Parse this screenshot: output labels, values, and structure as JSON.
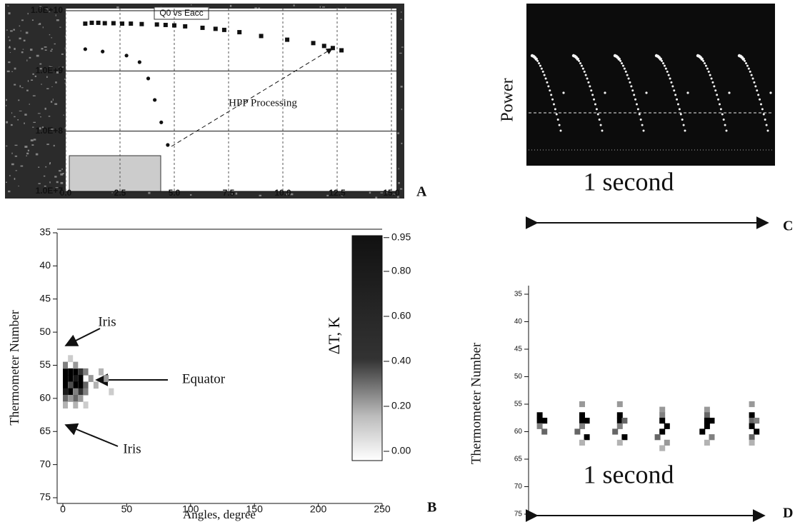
{
  "chart_data": [
    {
      "type": "scatter",
      "panel": "A",
      "title": "Q0 vs Eacc",
      "annotation": "HPP Processing",
      "xlim": [
        0,
        15
      ],
      "xticks": [
        {
          "value": 0,
          "label": "0.0"
        },
        2.5,
        {
          "value": 5,
          "label": "5.0"
        },
        7.5,
        {
          "value": 10,
          "label": "10.0"
        },
        12.5,
        {
          "value": 15,
          "label": "15.0"
        }
      ],
      "ylim": [
        10000000,
        10000000000
      ],
      "log_y": true,
      "yticks": [
        {
          "value": 10000000,
          "label": "1.0E+7"
        },
        {
          "value": 100000000,
          "label": "1.0E+8"
        },
        {
          "value": 1000000000,
          "label": "1.0E+9"
        },
        {
          "value": 10000000000,
          "label": "1.0E+10"
        }
      ],
      "grid": true,
      "series": [
        {
          "marker": "square",
          "color": "#111111",
          "x": [
            0.9,
            1.2,
            1.5,
            1.8,
            2.2,
            2.6,
            3.0,
            3.5,
            4.2,
            4.6,
            5.0,
            5.5,
            6.3,
            6.9,
            7.3,
            8.0,
            9.0,
            10.2,
            11.4,
            11.9,
            12.3,
            12.7
          ],
          "values": [
            6100000000,
            6300000000,
            6300000000,
            6200000000,
            6200000000,
            6100000000,
            6100000000,
            6000000000,
            5900000000,
            5800000000,
            5700000000,
            5500000000,
            5200000000,
            5000000000,
            4800000000,
            4400000000,
            3800000000,
            3300000000,
            2900000000,
            2600000000,
            2400000000,
            2200000000
          ]
        },
        {
          "marker": "circle",
          "color": "#111111",
          "x": [
            0.9,
            1.7,
            2.8,
            3.4,
            3.8,
            4.1,
            4.4,
            4.7
          ],
          "values": [
            2300000000,
            2100000000,
            1800000000,
            1400000000,
            750000000,
            330000000,
            140000000,
            59000000
          ]
        }
      ]
    },
    {
      "type": "heatmap",
      "panel": "B",
      "xlabel": "Angles, degree",
      "ylabel": "Thermometer Number",
      "colorbar_label": "ΔT, K",
      "annotations": [
        "Iris",
        "Equator",
        "Iris"
      ],
      "xlim": [
        0,
        250
      ],
      "xticks": [
        0,
        50,
        100,
        150,
        200,
        250
      ],
      "ylim": [
        35,
        75
      ],
      "yticks": [
        35,
        40,
        45,
        50,
        55,
        60,
        65,
        70,
        75
      ],
      "clim": [
        0,
        1
      ],
      "cticks": [
        0.95,
        {
          "value": 0.8,
          "label": "0.80"
        },
        {
          "value": 0.6,
          "label": "0.60"
        },
        {
          "value": 0.4,
          "label": "0.40"
        },
        {
          "value": 0.2,
          "label": "0.20"
        },
        {
          "value": 0,
          "label": "0.00"
        }
      ],
      "cells": [
        [
          0,
          56,
          1
        ],
        [
          4,
          56,
          1
        ],
        [
          8,
          56,
          1
        ],
        [
          12,
          56,
          0.8
        ],
        [
          0,
          57,
          1
        ],
        [
          4,
          57,
          1
        ],
        [
          8,
          57,
          0.9
        ],
        [
          12,
          57,
          1
        ],
        [
          0,
          58,
          1
        ],
        [
          4,
          58,
          0.7
        ],
        [
          8,
          58,
          1
        ],
        [
          12,
          58,
          1
        ],
        [
          16,
          58,
          0.6
        ],
        [
          0,
          59,
          0.9
        ],
        [
          4,
          59,
          1
        ],
        [
          8,
          59,
          0.5
        ],
        [
          12,
          59,
          0.8
        ],
        [
          16,
          59,
          0.5
        ],
        [
          0,
          60,
          0.6
        ],
        [
          4,
          60,
          0.4
        ],
        [
          8,
          60,
          0.6
        ],
        [
          12,
          60,
          0.4
        ],
        [
          0,
          55,
          0.5
        ],
        [
          8,
          55,
          0.4
        ],
        [
          16,
          56,
          0.5
        ],
        [
          20,
          57,
          0.4
        ],
        [
          24,
          58,
          0.3
        ],
        [
          28,
          56,
          0.3
        ],
        [
          32,
          57,
          0.4
        ],
        [
          36,
          59,
          0.2
        ],
        [
          0,
          61,
          0.3
        ],
        [
          8,
          61,
          0.3
        ],
        [
          16,
          61,
          0.2
        ],
        [
          4,
          54,
          0.2
        ]
      ]
    },
    {
      "type": "image",
      "panel": "C",
      "ylabel": "Power",
      "annotation": "1 second"
    },
    {
      "type": "heatmap",
      "panel": "D",
      "ylabel": "Thermometer Number",
      "annotations": [
        "1 second"
      ],
      "xlim": [
        0,
        1
      ],
      "ylim": [
        35,
        75
      ],
      "yticks": [
        35,
        40,
        45,
        50,
        55,
        60,
        65,
        70,
        75
      ],
      "clim": [
        0,
        1
      ],
      "cells": [
        [
          0.02,
          57,
          1
        ],
        [
          0.02,
          58,
          1
        ],
        [
          0.04,
          58,
          1
        ],
        [
          0.02,
          59,
          0.5
        ],
        [
          0.04,
          60,
          0.6
        ],
        [
          0.2,
          55,
          0.4
        ],
        [
          0.2,
          57,
          1
        ],
        [
          0.2,
          58,
          1
        ],
        [
          0.22,
          58,
          1
        ],
        [
          0.2,
          59,
          0.5
        ],
        [
          0.18,
          60,
          0.6
        ],
        [
          0.22,
          61,
          1
        ],
        [
          0.2,
          62,
          0.3
        ],
        [
          0.36,
          55,
          0.4
        ],
        [
          0.36,
          57,
          1
        ],
        [
          0.36,
          58,
          1
        ],
        [
          0.38,
          58,
          0.6
        ],
        [
          0.36,
          59,
          0.5
        ],
        [
          0.34,
          60,
          0.6
        ],
        [
          0.38,
          61,
          1
        ],
        [
          0.36,
          62,
          0.3
        ],
        [
          0.54,
          56,
          0.4
        ],
        [
          0.54,
          57,
          0.5
        ],
        [
          0.54,
          58,
          1
        ],
        [
          0.56,
          59,
          1
        ],
        [
          0.54,
          60,
          1
        ],
        [
          0.52,
          61,
          0.6
        ],
        [
          0.56,
          62,
          0.4
        ],
        [
          0.54,
          63,
          0.3
        ],
        [
          0.73,
          56,
          0.4
        ],
        [
          0.73,
          57,
          0.6
        ],
        [
          0.73,
          58,
          1
        ],
        [
          0.75,
          58,
          1
        ],
        [
          0.73,
          59,
          1
        ],
        [
          0.71,
          60,
          1
        ],
        [
          0.75,
          61,
          0.5
        ],
        [
          0.73,
          62,
          0.3
        ],
        [
          0.92,
          55,
          0.4
        ],
        [
          0.92,
          57,
          1
        ],
        [
          0.92,
          58,
          0.6
        ],
        [
          0.94,
          58,
          0.5
        ],
        [
          0.92,
          59,
          1
        ],
        [
          0.94,
          60,
          1
        ],
        [
          0.92,
          61,
          0.6
        ],
        [
          0.92,
          62,
          0.3
        ]
      ]
    }
  ]
}
